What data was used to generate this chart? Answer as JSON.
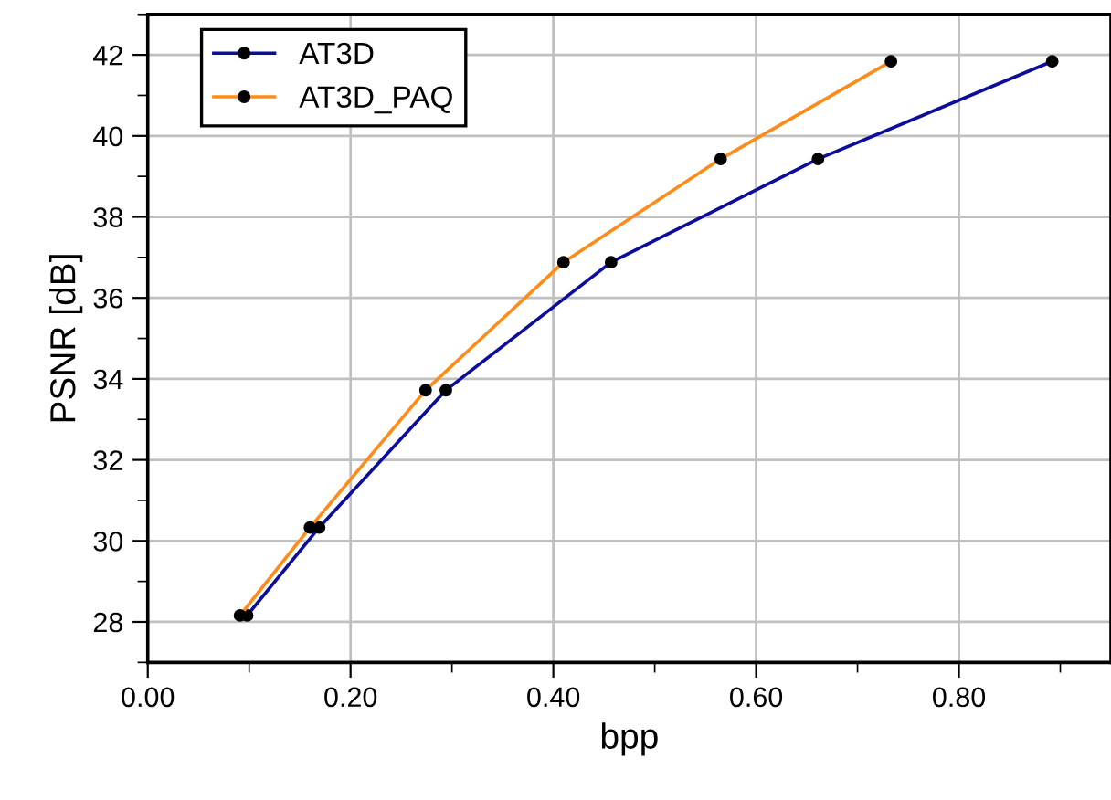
{
  "chart_data": {
    "type": "line",
    "xlabel": "bpp",
    "ylabel": "PSNR [dB]",
    "xlim": [
      0,
      0.95
    ],
    "xticks": [
      {
        "value": 0,
        "label": "0.00"
      },
      {
        "value": 0.2,
        "label": "0.20"
      },
      {
        "value": 0.4,
        "label": "0.40"
      },
      {
        "value": 0.6,
        "label": "0.60"
      },
      {
        "value": 0.8,
        "label": "0.80"
      }
    ],
    "ylim": [
      27,
      43
    ],
    "yticks": [
      28,
      30,
      32,
      34,
      36,
      38,
      40,
      42
    ],
    "grid": true,
    "legend": "top left",
    "marker": "circle",
    "line_style": "solid",
    "series": [
      {
        "name": "AT3D",
        "color": "#0d0d9c",
        "x": [
          0.098,
          0.169,
          0.294,
          0.457,
          0.661,
          0.892
        ],
        "values": [
          28.16,
          30.33,
          33.72,
          36.88,
          39.43,
          41.84
        ]
      },
      {
        "name": "AT3D_PAQ",
        "color": "#ff8c1a",
        "x": [
          0.091,
          0.16,
          0.274,
          0.41,
          0.565,
          0.733
        ],
        "values": [
          28.16,
          30.33,
          33.72,
          36.88,
          39.43,
          41.84
        ]
      }
    ]
  }
}
